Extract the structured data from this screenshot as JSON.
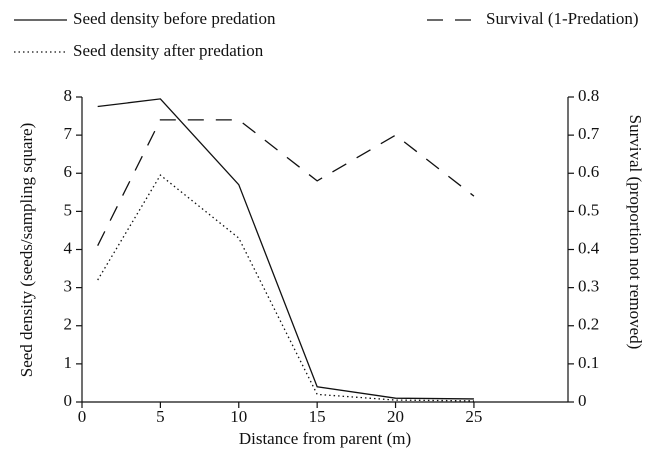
{
  "chart_data": {
    "type": "line",
    "x_label": "Distance from parent (m)",
    "y_label": "Seed density (seeds/sampling square)",
    "y2_label": "Survival (proportion not removed)",
    "x": [
      1,
      5,
      10,
      15,
      20,
      25
    ],
    "series": [
      {
        "name": "Seed density before predation",
        "color": "#111111",
        "style": "solid",
        "values": [
          7.75,
          7.95,
          5.7,
          0.4,
          0.1,
          0.08
        ]
      },
      {
        "name": "Seed density after predation",
        "color": "#111111",
        "style": "dotted",
        "values": [
          3.2,
          5.95,
          4.3,
          0.2,
          0.05,
          0.03
        ]
      },
      {
        "name": "Survival (1-Predation)",
        "color": "#111111",
        "style": "dashed",
        "axis": "y2",
        "values": [
          0.41,
          0.74,
          0.74,
          0.58,
          0.7,
          0.54
        ]
      }
    ],
    "xlim": [
      0,
      31
    ],
    "xticks": [
      0,
      5,
      10,
      15,
      20,
      25
    ],
    "ylim": [
      0,
      8
    ],
    "yticks": [
      0,
      1,
      2,
      3,
      4,
      5,
      6,
      7,
      8
    ],
    "y2lim": [
      0,
      0.8
    ],
    "y2ticks": [
      0,
      0.1,
      0.2,
      0.3,
      0.4,
      0.5,
      0.6,
      0.7,
      0.8
    ]
  }
}
